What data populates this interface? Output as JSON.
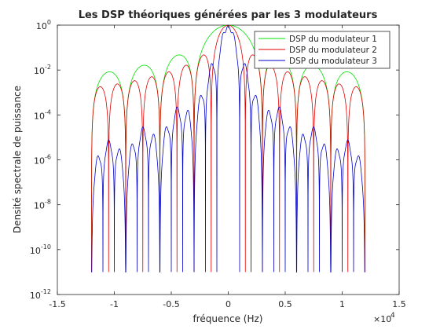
{
  "chart_data": {
    "type": "line",
    "title": "Les DSP théoriques générées par les 3 modulateurs",
    "xlabel": "fréquence (Hz)",
    "ylabel": "Densité spectrale de puissance",
    "x_exponent_label": "×10",
    "x_exponent_power": "4",
    "xlim": [
      -15000,
      15000
    ],
    "ylim": [
      1e-12,
      1
    ],
    "y_scale": "log",
    "x_ticks": [
      {
        "value": -15000,
        "label": "-1.5"
      },
      {
        "value": -10000,
        "label": "-1"
      },
      {
        "value": -5000,
        "label": "-0.5"
      },
      {
        "value": 0,
        "label": "0"
      },
      {
        "value": 5000,
        "label": "0.5"
      },
      {
        "value": 10000,
        "label": "1"
      },
      {
        "value": 15000,
        "label": "1.5"
      }
    ],
    "y_ticks": [
      {
        "value": 1.0,
        "base": "10",
        "exp": "0"
      },
      {
        "value": 0.01,
        "base": "10",
        "exp": "-2"
      },
      {
        "value": 0.0001,
        "base": "10",
        "exp": "-4"
      },
      {
        "value": 1e-06,
        "base": "10",
        "exp": "-6"
      },
      {
        "value": 1e-08,
        "base": "10",
        "exp": "-8"
      },
      {
        "value": 1e-10,
        "base": "10",
        "exp": "-10"
      },
      {
        "value": 1e-12,
        "base": "10",
        "exp": "-12"
      }
    ],
    "grid": false,
    "legend_position": "top-right",
    "series": [
      {
        "name": "DSP du modulateur 1",
        "color": "#00e000",
        "description_model": "sinc^2",
        "null_spacing_hz": 3000,
        "x_range": [
          -12000,
          12000
        ],
        "peak": 1
      },
      {
        "name": "DSP du modulateur 2",
        "color": "#e00000",
        "description_model": "sinc^2 x cos^2",
        "null_spacing_hz": 1500,
        "x_range": [
          -12000,
          12000
        ],
        "peak": 1
      },
      {
        "name": "DSP du modulateur 3",
        "color": "#0000c8",
        "description_model": "sinc^2 x sinc^2-like",
        "null_spacing_hz": 500,
        "x_range": [
          -12000,
          12000
        ],
        "peak": 1
      }
    ]
  }
}
